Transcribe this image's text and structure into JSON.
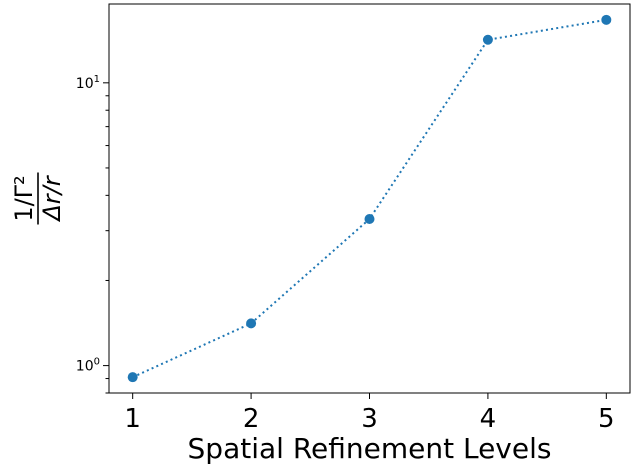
{
  "chart_data": {
    "type": "line",
    "x": [
      1,
      2,
      3,
      4,
      5
    ],
    "series": [
      {
        "values": [
          0.91,
          1.41,
          3.3,
          14.2,
          16.7
        ],
        "color": "#1f77b4",
        "line_style": "dotted",
        "marker": "circle"
      }
    ],
    "xlabel": "Spatial Refinement Levels",
    "ylabel_numerator": "1/Γ²",
    "ylabel_denominator": "Δr/r",
    "y_scale": "log",
    "xlim": [
      0.8,
      5.2
    ],
    "ylim": [
      0.8,
      19
    ],
    "x_ticks": [
      "1",
      "2",
      "3",
      "4",
      "5"
    ],
    "y_ticks": [
      {
        "value": 1,
        "base": "10",
        "exp": "0"
      },
      {
        "value": 10,
        "base": "10",
        "exp": "1"
      }
    ],
    "grid": false
  }
}
